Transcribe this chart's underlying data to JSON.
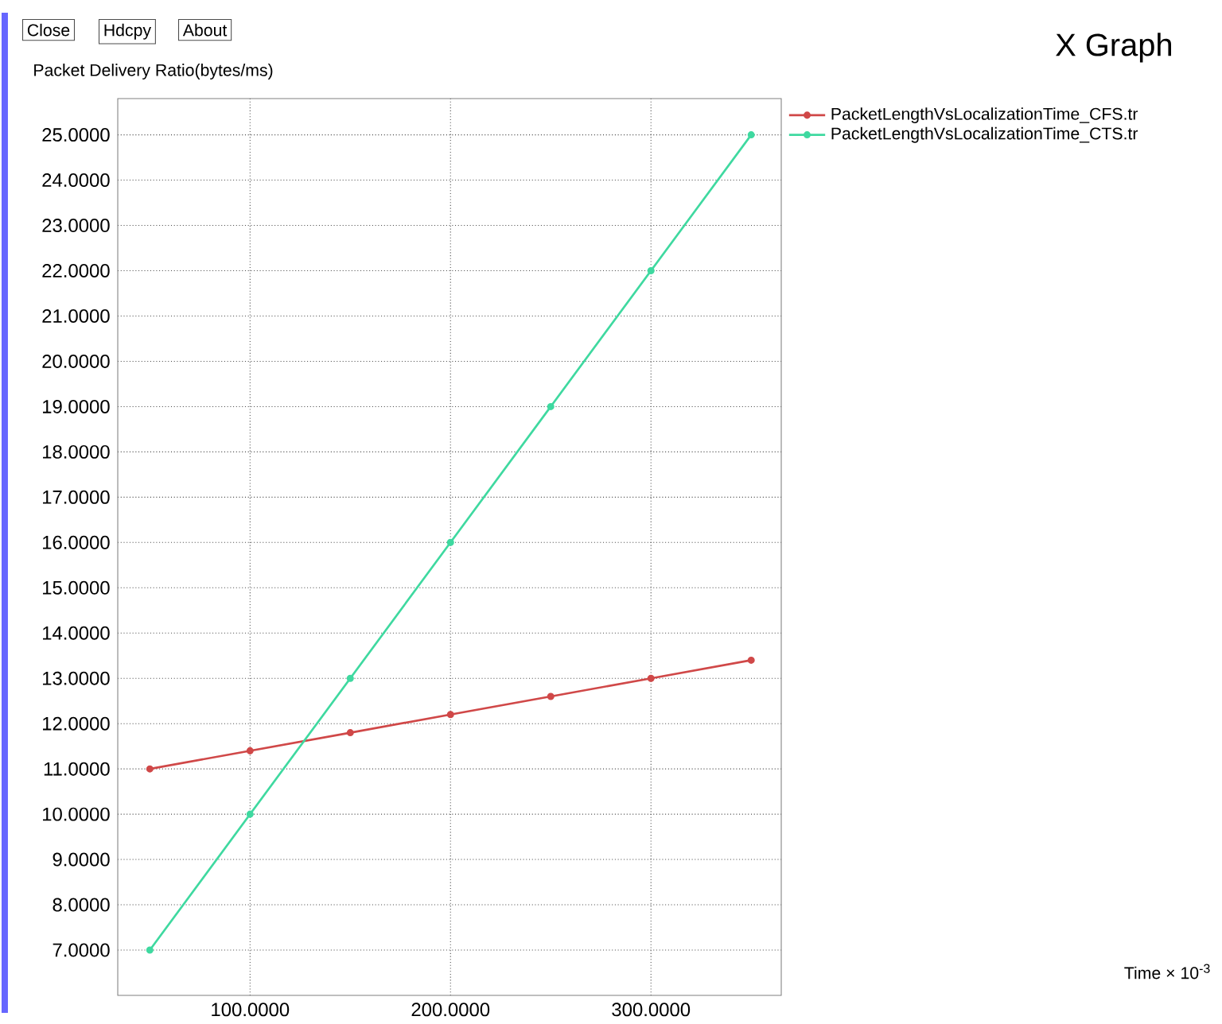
{
  "chart_data": {
    "type": "line",
    "title": "X Graph",
    "ylabel": "Packet Delivery Ratio(bytes/ms)",
    "annotations": [
      "Close",
      "Hdcpy",
      "About",
      "Time × 10$^{-3}$"
    ],
    "x": [
      50,
      100,
      150,
      200,
      250,
      300,
      350
    ],
    "series": [
      {
        "name": "PacketLengthVsLocalizationTime_CFS.tr",
        "color": "#d04848",
        "values": [
          11.0,
          11.4,
          11.8,
          12.2,
          12.6,
          13.0,
          13.4
        ]
      },
      {
        "name": "PacketLengthVsLocalizationTime_CTS.tr",
        "color": "#3fd9a0",
        "values": [
          7.0,
          10.0,
          13.0,
          16.0,
          19.0,
          22.0,
          25.0
        ]
      }
    ],
    "xlim": [
      34,
      365
    ],
    "ylim": [
      6.0,
      25.8
    ],
    "xticks": [
      {
        "value": 100,
        "label": "100.0000"
      },
      {
        "value": 200,
        "label": "200.0000"
      },
      {
        "value": 300,
        "label": "300.0000"
      }
    ],
    "yticks": [
      {
        "value": 7,
        "label": "7.0000"
      },
      {
        "value": 8,
        "label": "8.0000"
      },
      {
        "value": 9,
        "label": "9.0000"
      },
      {
        "value": 10,
        "label": "10.0000"
      },
      {
        "value": 11,
        "label": "11.0000"
      },
      {
        "value": 12,
        "label": "12.0000"
      },
      {
        "value": 13,
        "label": "13.0000"
      },
      {
        "value": 14,
        "label": "14.0000"
      },
      {
        "value": 15,
        "label": "15.0000"
      },
      {
        "value": 16,
        "label": "16.0000"
      },
      {
        "value": 17,
        "label": "17.0000"
      },
      {
        "value": 18,
        "label": "18.0000"
      },
      {
        "value": 19,
        "label": "19.0000"
      },
      {
        "value": 20,
        "label": "20.0000"
      },
      {
        "value": 21,
        "label": "21.0000"
      },
      {
        "value": 22,
        "label": "22.0000"
      },
      {
        "value": 23,
        "label": "23.0000"
      },
      {
        "value": 24,
        "label": "24.0000"
      },
      {
        "value": 25,
        "label": "25.0000"
      }
    ],
    "grid": true,
    "legend": "top right",
    "marker": "circle",
    "line_style": "solid"
  }
}
